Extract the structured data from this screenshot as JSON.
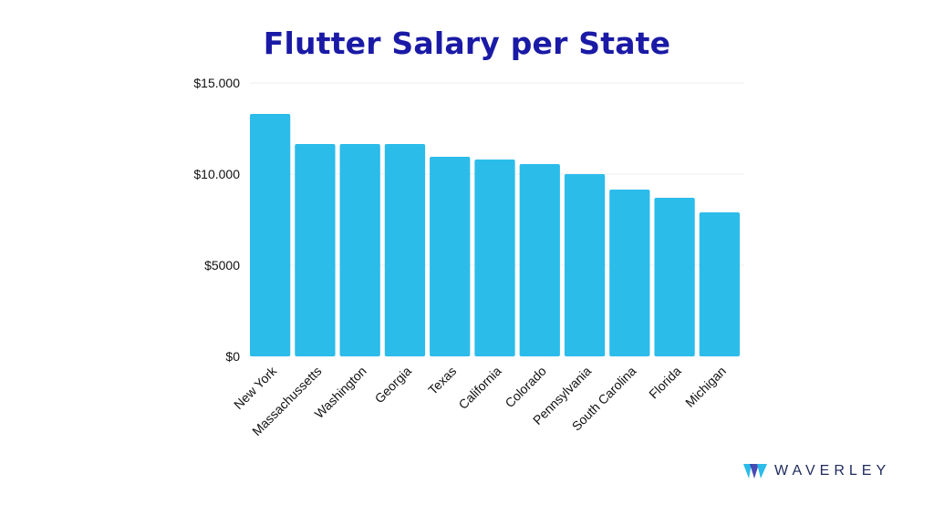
{
  "chart_data": {
    "type": "bar",
    "title": "Flutter Salary per State",
    "categories": [
      "New York",
      "Massachussetts",
      "Washington",
      "Georgia",
      "Texas",
      "California",
      "Colorado",
      "Pennsylvania",
      "South Carolina",
      "Florida",
      "Michigan"
    ],
    "values": [
      13300,
      11650,
      11650,
      11650,
      10950,
      10800,
      10550,
      10000,
      9150,
      8700,
      7900
    ],
    "ylim": [
      0,
      15000
    ],
    "yticks": [
      0,
      5000,
      10000,
      15000
    ],
    "ytick_labels": [
      "$0",
      "$5000",
      "$10.000",
      "$15.000"
    ],
    "xlabel": "",
    "ylabel": "",
    "grid": "horizontal",
    "bar_color": "#2bbcea",
    "title_color": "#1a1aa6"
  },
  "brand": {
    "name": "WAVERLEY",
    "name_color": "#1f2a5c",
    "icon": "waverley-logo-icon",
    "icon_colors": [
      "#2bbcea",
      "#2a2aa6"
    ]
  }
}
